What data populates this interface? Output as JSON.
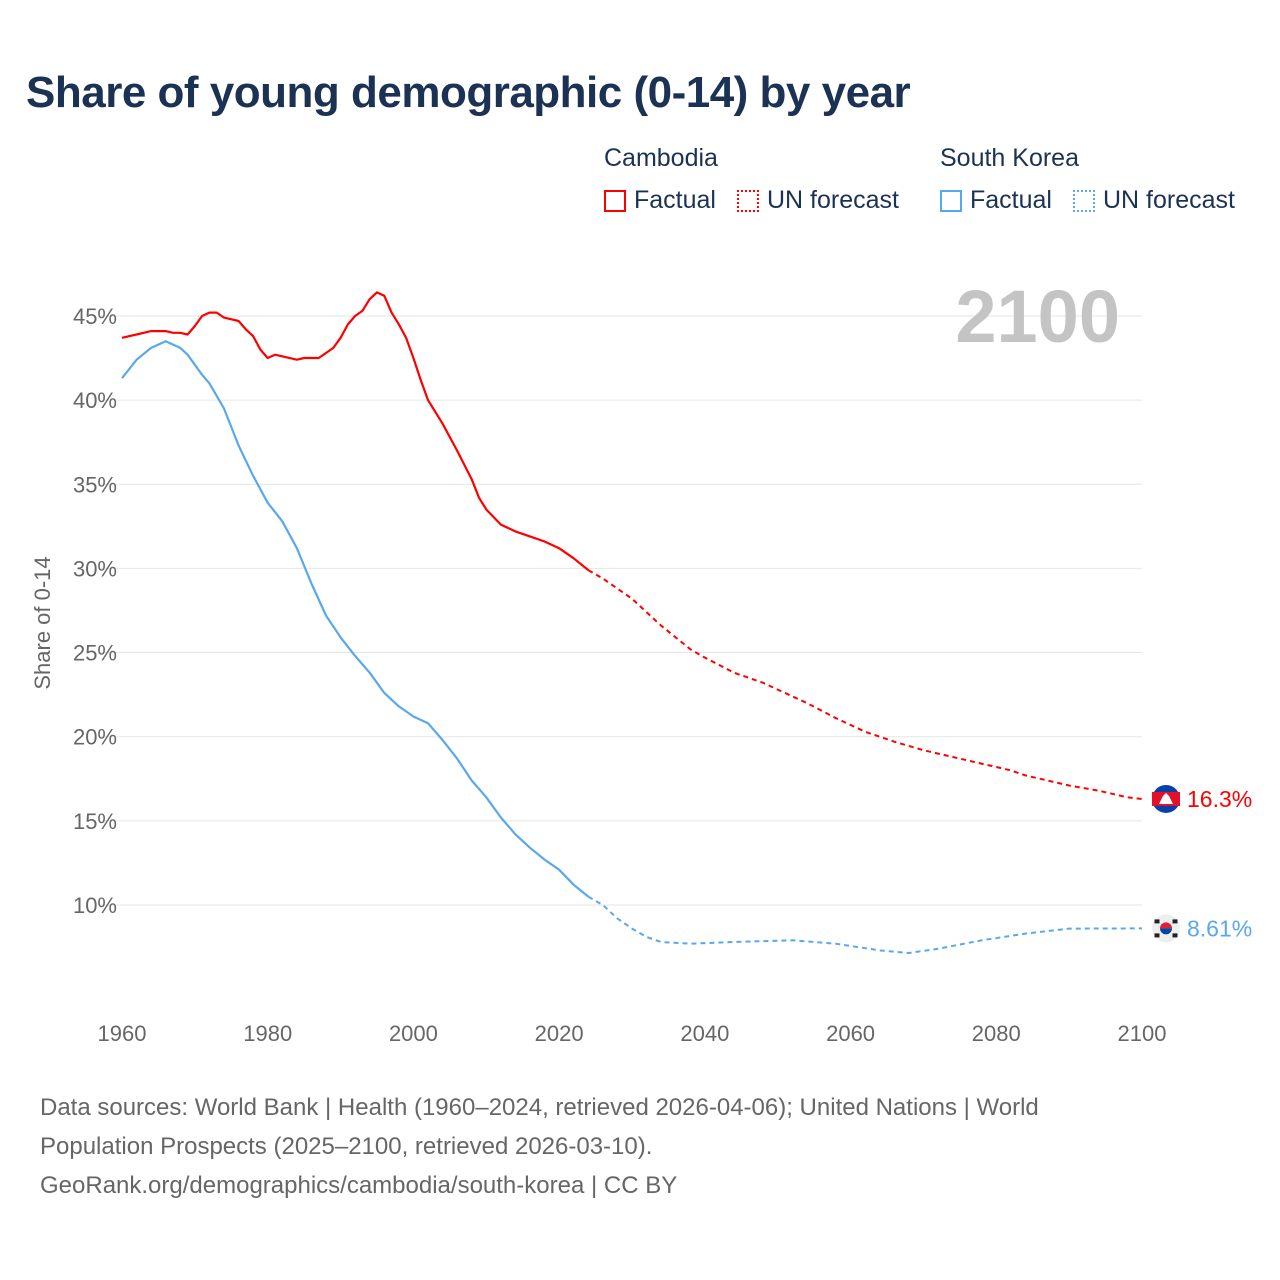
{
  "title": "Share of young demographic (0-14) by year",
  "legend": {
    "groups": [
      {
        "name": "Cambodia",
        "factual_label": "Factual",
        "forecast_label": "UN forecast",
        "color": "#ff0000"
      },
      {
        "name": "South Korea",
        "factual_label": "Factual",
        "forecast_label": "UN forecast",
        "color": "#5aa8ec"
      }
    ]
  },
  "year_watermark": "2100",
  "footer": {
    "line1": "Data sources: World Bank | Health (1960–2024, retrieved 2026-04-06); United Nations | World",
    "line2": "Population Prospects (2025–2100, retrieved 2026-03-10).",
    "line3": "GeoRank.org/demographics/cambodia/south-korea | CC BY"
  },
  "chart_data": {
    "type": "line",
    "title": "Share of young demographic (0-14) by year",
    "xlabel": "",
    "ylabel": "Share of 0-14",
    "xlim": [
      1960,
      2100
    ],
    "ylim": [
      5.5,
      48
    ],
    "x_ticks": [
      1960,
      1980,
      2000,
      2020,
      2040,
      2060,
      2080,
      2100
    ],
    "x_tick_labels": [
      "1960",
      "1980",
      "2000",
      "2020",
      "2040",
      "2060",
      "2080",
      "2100"
    ],
    "y_ticks": [
      10,
      15,
      20,
      25,
      30,
      35,
      40,
      45
    ],
    "y_tick_labels": [
      "10%",
      "15%",
      "20%",
      "25%",
      "30%",
      "35%",
      "40%",
      "45%"
    ],
    "grid": true,
    "legend_position": "top-right",
    "series": [
      {
        "name": "Cambodia",
        "color": "#ff0000",
        "end_label": "16.3%",
        "factual": [
          [
            1960,
            43.7
          ],
          [
            1962,
            43.9
          ],
          [
            1964,
            44.1
          ],
          [
            1966,
            44.1
          ],
          [
            1967,
            44.0
          ],
          [
            1968,
            44.0
          ],
          [
            1969,
            43.9
          ],
          [
            1970,
            44.4
          ],
          [
            1971,
            45.0
          ],
          [
            1972,
            45.2
          ],
          [
            1973,
            45.2
          ],
          [
            1974,
            44.9
          ],
          [
            1976,
            44.7
          ],
          [
            1977,
            44.2
          ],
          [
            1978,
            43.8
          ],
          [
            1979,
            43.0
          ],
          [
            1980,
            42.5
          ],
          [
            1981,
            42.7
          ],
          [
            1984,
            42.4
          ],
          [
            1985,
            42.5
          ],
          [
            1987,
            42.5
          ],
          [
            1988,
            42.8
          ],
          [
            1989,
            43.1
          ],
          [
            1990,
            43.7
          ],
          [
            1991,
            44.5
          ],
          [
            1992,
            45.0
          ],
          [
            1993,
            45.3
          ],
          [
            1994,
            46.0
          ],
          [
            1995,
            46.4
          ],
          [
            1996,
            46.2
          ],
          [
            1997,
            45.2
          ],
          [
            1998,
            44.5
          ],
          [
            1999,
            43.7
          ],
          [
            2000,
            42.5
          ],
          [
            2001,
            41.2
          ],
          [
            2002,
            40.0
          ],
          [
            2004,
            38.6
          ],
          [
            2006,
            37.0
          ],
          [
            2008,
            35.3
          ],
          [
            2009,
            34.2
          ],
          [
            2010,
            33.5
          ],
          [
            2012,
            32.6
          ],
          [
            2014,
            32.2
          ],
          [
            2016,
            31.9
          ],
          [
            2018,
            31.6
          ],
          [
            2020,
            31.2
          ],
          [
            2022,
            30.6
          ],
          [
            2024,
            29.9
          ]
        ],
        "forecast": [
          [
            2024,
            29.9
          ],
          [
            2026,
            29.4
          ],
          [
            2030,
            28.2
          ],
          [
            2034,
            26.6
          ],
          [
            2038,
            25.2
          ],
          [
            2040,
            24.7
          ],
          [
            2044,
            23.8
          ],
          [
            2048,
            23.2
          ],
          [
            2050,
            22.8
          ],
          [
            2054,
            22.0
          ],
          [
            2058,
            21.1
          ],
          [
            2062,
            20.3
          ],
          [
            2066,
            19.7
          ],
          [
            2070,
            19.2
          ],
          [
            2076,
            18.6
          ],
          [
            2082,
            18.0
          ],
          [
            2084,
            17.7
          ],
          [
            2090,
            17.1
          ],
          [
            2094,
            16.8
          ],
          [
            2098,
            16.4
          ],
          [
            2100,
            16.3
          ]
        ]
      },
      {
        "name": "South Korea",
        "color": "#5aa8ec",
        "end_label": "8.61%",
        "factual": [
          [
            1960,
            41.3
          ],
          [
            1962,
            42.4
          ],
          [
            1964,
            43.1
          ],
          [
            1966,
            43.5
          ],
          [
            1968,
            43.1
          ],
          [
            1969,
            42.7
          ],
          [
            1971,
            41.5
          ],
          [
            1972,
            41.0
          ],
          [
            1974,
            39.5
          ],
          [
            1976,
            37.3
          ],
          [
            1978,
            35.5
          ],
          [
            1980,
            33.9
          ],
          [
            1982,
            32.8
          ],
          [
            1984,
            31.2
          ],
          [
            1986,
            29.1
          ],
          [
            1988,
            27.2
          ],
          [
            1990,
            25.9
          ],
          [
            1992,
            24.8
          ],
          [
            1994,
            23.8
          ],
          [
            1996,
            22.6
          ],
          [
            1998,
            21.8
          ],
          [
            2000,
            21.2
          ],
          [
            2002,
            20.8
          ],
          [
            2004,
            19.8
          ],
          [
            2006,
            18.7
          ],
          [
            2008,
            17.4
          ],
          [
            2010,
            16.4
          ],
          [
            2012,
            15.2
          ],
          [
            2014,
            14.2
          ],
          [
            2016,
            13.4
          ],
          [
            2018,
            12.7
          ],
          [
            2020,
            12.1
          ],
          [
            2022,
            11.2
          ],
          [
            2024,
            10.5
          ]
        ],
        "forecast": [
          [
            2024,
            10.5
          ],
          [
            2026,
            10.0
          ],
          [
            2028,
            9.2
          ],
          [
            2030,
            8.6
          ],
          [
            2032,
            8.1
          ],
          [
            2034,
            7.8
          ],
          [
            2038,
            7.7
          ],
          [
            2044,
            7.8
          ],
          [
            2052,
            7.9
          ],
          [
            2058,
            7.7
          ],
          [
            2064,
            7.3
          ],
          [
            2068,
            7.15
          ],
          [
            2072,
            7.4
          ],
          [
            2078,
            7.9
          ],
          [
            2084,
            8.3
          ],
          [
            2090,
            8.6
          ],
          [
            2100,
            8.61
          ]
        ]
      }
    ]
  }
}
